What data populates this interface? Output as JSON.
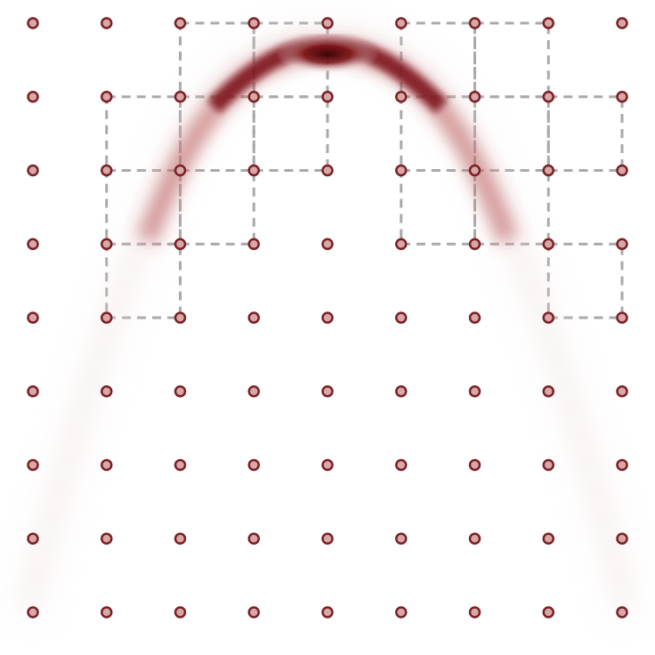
{
  "diagram": {
    "grid": {
      "columns": 9,
      "rows": 9
    },
    "node_style": {
      "fill": "#d8a7a7",
      "stroke": "#7a2024"
    },
    "dashed_cells": [
      [
        2,
        0
      ],
      [
        3,
        0
      ],
      [
        5,
        0
      ],
      [
        6,
        0
      ],
      [
        1,
        1
      ],
      [
        2,
        1
      ],
      [
        6,
        1
      ],
      [
        7,
        1
      ],
      [
        1,
        2
      ],
      [
        2,
        2
      ],
      [
        5,
        1
      ],
      [
        6,
        2
      ],
      [
        1,
        3
      ],
      [
        7,
        3
      ],
      [
        5,
        2
      ],
      [
        3,
        1
      ]
    ],
    "dashed_stroke": "#a9a9a9",
    "curve": {
      "peak_color": "#4a0508",
      "shape": "inverted-parabola"
    }
  }
}
